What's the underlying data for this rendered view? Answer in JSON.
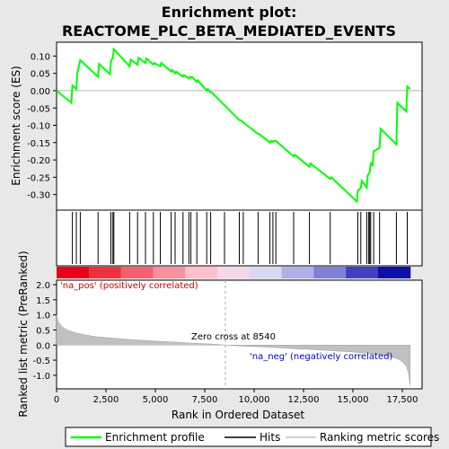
{
  "chart_data": {
    "type": "line",
    "title_line1": "Enrichment plot:",
    "title_line2": "REACTOME_PLC_BETA_MEDIATED_EVENTS",
    "top_panel": {
      "ylabel": "Enrichment score (ES)",
      "ylim": [
        -0.345,
        0.14
      ],
      "yticks": [
        "0.10",
        "0.05",
        "0.00",
        "-0.05",
        "-0.10",
        "-0.15",
        "-0.20",
        "-0.25",
        "-0.30"
      ],
      "ytick_values": [
        0.1,
        0.05,
        0.0,
        -0.05,
        -0.1,
        -0.15,
        -0.2,
        -0.25,
        -0.3
      ],
      "series_name": "Enrichment profile",
      "color": "#00ff00",
      "x": [
        0,
        750,
        800,
        1000,
        1050,
        1200,
        2100,
        2150,
        2700,
        2750,
        2850,
        2900,
        3700,
        3750,
        4100,
        4150,
        4500,
        4550,
        4900,
        4950,
        5250,
        5300,
        5800,
        5850,
        6000,
        6050,
        6400,
        6450,
        6700,
        6750,
        6800,
        6850,
        7100,
        7150,
        7600,
        7650,
        7800,
        7850,
        9250,
        9300,
        10200,
        10250,
        10800,
        10850,
        10950,
        11000,
        11100,
        12000,
        12050,
        12800,
        12850,
        13850,
        13900,
        15200,
        15250,
        15400,
        15450,
        15700,
        15750,
        15850,
        15900,
        16000,
        16050,
        16350,
        16400,
        17200,
        17250,
        17700,
        17750,
        17900
      ],
      "y": [
        0.0,
        -0.035,
        0.015,
        0.005,
        0.05,
        0.088,
        0.04,
        0.077,
        0.048,
        0.085,
        0.095,
        0.12,
        0.07,
        0.09,
        0.075,
        0.095,
        0.08,
        0.093,
        0.075,
        0.08,
        0.07,
        0.08,
        0.055,
        0.06,
        0.05,
        0.055,
        0.04,
        0.045,
        0.035,
        0.04,
        0.038,
        0.04,
        0.025,
        0.03,
        0.0,
        0.005,
        -0.005,
        -0.005,
        -0.085,
        -0.085,
        -0.125,
        -0.125,
        -0.15,
        -0.145,
        -0.148,
        -0.145,
        -0.145,
        -0.19,
        -0.185,
        -0.22,
        -0.21,
        -0.255,
        -0.25,
        -0.32,
        -0.29,
        -0.28,
        -0.26,
        -0.28,
        -0.245,
        -0.235,
        -0.21,
        -0.215,
        -0.175,
        -0.165,
        -0.11,
        -0.155,
        -0.035,
        -0.06,
        0.012,
        0.005
      ]
    },
    "hits": {
      "series_name": "Hits",
      "positions": [
        800,
        1000,
        1200,
        2100,
        2750,
        2850,
        2900,
        3700,
        4100,
        4500,
        4900,
        5250,
        5800,
        6000,
        6400,
        6700,
        6800,
        7100,
        7600,
        7800,
        8500,
        9250,
        9450,
        10200,
        10800,
        10950,
        11100,
        12000,
        12800,
        13850,
        15250,
        15400,
        15700,
        15800,
        15850,
        15900,
        16050,
        16350,
        17200,
        17750
      ]
    },
    "bottom_panel": {
      "ylabel": "Ranked list metric (PreRanked)",
      "xlabel": "Rank in Ordered Dataset",
      "ylim": [
        -1.45,
        2.15
      ],
      "yticks": [
        "2.0",
        "1.5",
        "1.0",
        "0.5",
        "0.0",
        "-0.5",
        "-1.0"
      ],
      "ytick_values": [
        2.0,
        1.5,
        1.0,
        0.5,
        0.0,
        -0.5,
        -1.0
      ],
      "xlim": [
        0,
        18500
      ],
      "xticks": [
        "0",
        "2,500",
        "5,000",
        "7,500",
        "10,000",
        "12,500",
        "15,000",
        "17,500"
      ],
      "xtick_values": [
        0,
        2500,
        5000,
        7500,
        10000,
        12500,
        15000,
        17500
      ],
      "metric_x": [
        0,
        100,
        300,
        600,
        1000,
        1500,
        2000,
        3000,
        4000,
        5000,
        6000,
        7000,
        8000,
        8540,
        9000,
        10000,
        11000,
        12000,
        13000,
        14000,
        15000,
        16000,
        16500,
        17000,
        17300,
        17500,
        17700,
        17800,
        17850,
        17900
      ],
      "metric_y": [
        1.0,
        0.75,
        0.6,
        0.48,
        0.4,
        0.33,
        0.28,
        0.22,
        0.17,
        0.13,
        0.1,
        0.06,
        0.03,
        0.0,
        -0.02,
        -0.05,
        -0.08,
        -0.12,
        -0.15,
        -0.19,
        -0.23,
        -0.29,
        -0.33,
        -0.4,
        -0.47,
        -0.55,
        -0.7,
        -0.9,
        -1.1,
        -1.35
      ],
      "series_name": "Ranking metric scores",
      "zero_cross_label": "Zero cross at 8540",
      "zero_cross": 8540,
      "pos_label": "'na_pos' (positively correlated)",
      "neg_label": "'na_neg' (negatively correlated)"
    },
    "colorbar_colors": [
      "#e8001a",
      "#f03040",
      "#f56070",
      "#f890a0",
      "#fbc0cc",
      "#f5d8e8",
      "#d8d8f5",
      "#b0b0e8",
      "#8080d8",
      "#4040c0",
      "#1010a8"
    ],
    "legend": [
      "Enrichment profile",
      "Hits",
      "Ranking metric scores"
    ]
  }
}
